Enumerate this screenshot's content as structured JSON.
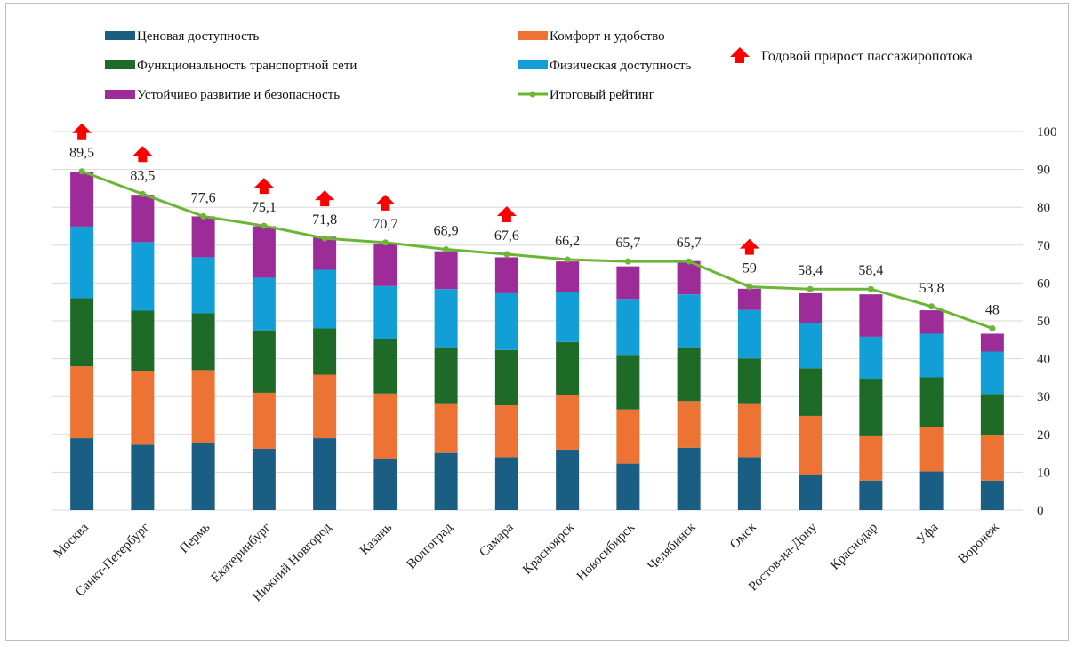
{
  "chart_data": {
    "type": "bar",
    "stacked": true,
    "categories": [
      "Москва",
      "Санкт-Петербург",
      "Пермь",
      "Екатеринбург",
      "Нижний Новгород",
      "Казань",
      "Волгоград",
      "Самара",
      "Красноярск",
      "Новосибирск",
      "Челябинск",
      "Омск",
      "Ростов-на-Дону",
      "Краснодар",
      "Уфа",
      "Воронеж"
    ],
    "series": [
      {
        "name": "Ценовая доступность",
        "color": "#1b5e84",
        "values": [
          19,
          17.3,
          17.8,
          16.2,
          19,
          13.5,
          15.1,
          14,
          16,
          12.3,
          16.5,
          14,
          9.3,
          7.8,
          10.2,
          7.8
        ]
      },
      {
        "name": "Комфорт и удобство",
        "color": "#ec7334",
        "values": [
          19,
          19.4,
          19.2,
          14.8,
          16.8,
          17.3,
          12.9,
          13.7,
          14.5,
          14.3,
          12.3,
          14,
          15.6,
          11.7,
          11.7,
          11.9
        ]
      },
      {
        "name": "Функциональность транспортной сети",
        "color": "#1e6b27",
        "values": [
          18,
          16,
          15,
          16.5,
          12.2,
          14.5,
          14.8,
          14.6,
          13.9,
          14.2,
          14,
          12.1,
          12.6,
          15,
          13.2,
          11
        ]
      },
      {
        "name": "Физическая доступность",
        "color": "#129fd7",
        "values": [
          18.9,
          18.1,
          14.8,
          13.9,
          15.5,
          13.9,
          15.6,
          15,
          13.3,
          15,
          14.2,
          12.8,
          11.8,
          11.3,
          11.5,
          11.2
        ]
      },
      {
        "name": "Устойчиво развитие и безопасность",
        "color": "#9e2c98",
        "values": [
          14.3,
          12.5,
          10.8,
          13.6,
          8.7,
          11,
          10,
          9.5,
          8,
          8.6,
          8.8,
          5.6,
          8,
          11.2,
          6.2,
          4.7
        ]
      }
    ],
    "line": {
      "name": "Итоговый рейтинг",
      "color": "#6bb634",
      "values": [
        89.5,
        83.5,
        77.6,
        75.1,
        71.8,
        70.7,
        68.9,
        67.6,
        66.2,
        65.7,
        65.7,
        59,
        58.4,
        58.4,
        53.8,
        48
      ],
      "labels": [
        "89,5",
        "83,5",
        "77,6",
        "75,1",
        "71,8",
        "70,7",
        "68,9",
        "67,6",
        "66,2",
        "65,7",
        "65,7",
        "59",
        "58,4",
        "58,4",
        "53,8",
        "48"
      ]
    },
    "growth_marker": {
      "name": "Годовой прирост пассажиропотока",
      "color": "#ff0000",
      "flags": [
        true,
        true,
        false,
        true,
        true,
        true,
        false,
        true,
        false,
        false,
        false,
        true,
        false,
        false,
        false,
        false
      ]
    },
    "yaxis": {
      "side": "right",
      "min": 0,
      "max": 100,
      "step": 10,
      "ticks": [
        "0",
        "10",
        "20",
        "30",
        "40",
        "50",
        "60",
        "70",
        "80",
        "90",
        "100"
      ]
    },
    "grid": true,
    "legend_position": "top"
  }
}
